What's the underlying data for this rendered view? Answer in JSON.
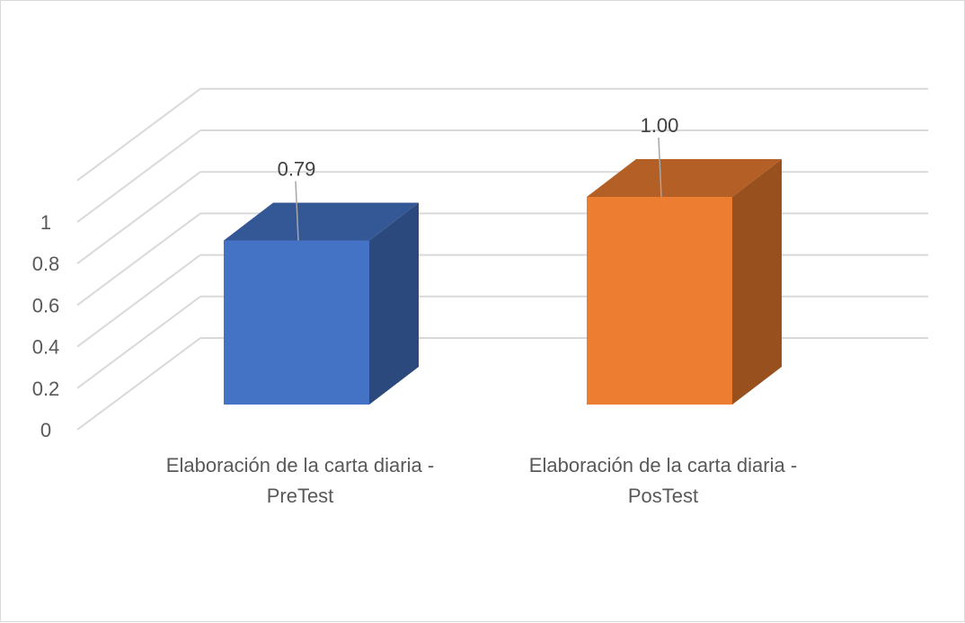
{
  "chart_data": {
    "type": "bar",
    "style": "3d-column",
    "categories": [
      [
        "Elaboración de la carta diaria -",
        "PreTest"
      ],
      [
        "Elaboración de la carta diaria -",
        "PosTest"
      ]
    ],
    "values": [
      0.79,
      1.0
    ],
    "data_labels": [
      "0.79",
      "1.00"
    ],
    "y_ticks": [
      "0",
      "0.2",
      "0.4",
      "0.6",
      "0.8",
      "1"
    ],
    "ylim": [
      0,
      1.2
    ],
    "grid": true,
    "colors": [
      "#4472c4",
      "#ed7d31"
    ],
    "title": "",
    "xlabel": "",
    "ylabel": ""
  }
}
